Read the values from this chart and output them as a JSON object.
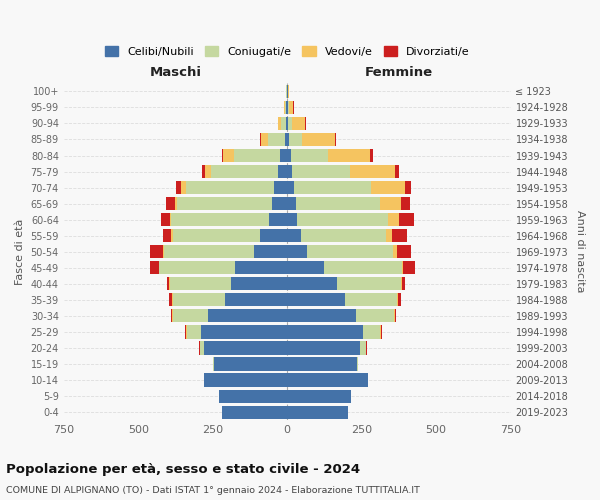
{
  "age_groups": [
    "0-4",
    "5-9",
    "10-14",
    "15-19",
    "20-24",
    "25-29",
    "30-34",
    "35-39",
    "40-44",
    "45-49",
    "50-54",
    "55-59",
    "60-64",
    "65-69",
    "70-74",
    "75-79",
    "80-84",
    "85-89",
    "90-94",
    "95-99",
    "100+"
  ],
  "birth_years": [
    "2019-2023",
    "2014-2018",
    "2009-2013",
    "2004-2008",
    "1999-2003",
    "1994-1998",
    "1989-1993",
    "1984-1988",
    "1979-1983",
    "1974-1978",
    "1969-1973",
    "1964-1968",
    "1959-1963",
    "1954-1958",
    "1949-1953",
    "1944-1948",
    "1939-1943",
    "1934-1938",
    "1929-1933",
    "1924-1928",
    "≤ 1923"
  ],
  "maschi": {
    "celibi": [
      220,
      230,
      280,
      245,
      280,
      290,
      265,
      210,
      190,
      175,
      110,
      90,
      60,
      50,
      45,
      30,
      25,
      8,
      5,
      3,
      2
    ],
    "coniugati": [
      0,
      0,
      0,
      3,
      12,
      48,
      120,
      175,
      205,
      255,
      305,
      295,
      330,
      320,
      295,
      225,
      155,
      55,
      15,
      5,
      2
    ],
    "vedovi": [
      0,
      0,
      0,
      0,
      0,
      1,
      1,
      1,
      2,
      2,
      3,
      4,
      5,
      8,
      15,
      20,
      35,
      25,
      10,
      3,
      1
    ],
    "divorziati": [
      0,
      0,
      0,
      0,
      5,
      3,
      5,
      12,
      8,
      28,
      42,
      28,
      28,
      28,
      18,
      10,
      5,
      3,
      1,
      0,
      0
    ]
  },
  "femmine": {
    "nubili": [
      205,
      215,
      270,
      235,
      245,
      255,
      230,
      195,
      168,
      125,
      65,
      45,
      32,
      28,
      22,
      15,
      12,
      6,
      4,
      2,
      2
    ],
    "coniugate": [
      0,
      0,
      0,
      3,
      18,
      58,
      130,
      175,
      215,
      260,
      290,
      288,
      308,
      285,
      258,
      195,
      125,
      45,
      12,
      4,
      1
    ],
    "vedove": [
      0,
      0,
      0,
      0,
      1,
      1,
      1,
      2,
      3,
      5,
      12,
      20,
      35,
      68,
      115,
      152,
      142,
      110,
      45,
      15,
      3
    ],
    "divorziate": [
      0,
      0,
      0,
      0,
      3,
      3,
      5,
      10,
      8,
      38,
      48,
      48,
      52,
      32,
      22,
      15,
      8,
      4,
      1,
      1,
      0
    ]
  },
  "colors": {
    "celibi": "#4472a8",
    "coniugati": "#c5d8a0",
    "vedovi": "#f5c460",
    "divorziati": "#cc1f1f"
  },
  "title": "Popolazione per età, sesso e stato civile - 2024",
  "subtitle": "COMUNE DI ALPIGNANO (TO) - Dati ISTAT 1° gennaio 2024 - Elaborazione TUTTITALIA.IT",
  "xlim": 750,
  "xlabel_maschi": "Maschi",
  "xlabel_femmine": "Femmine",
  "ylabel_left": "Fasce di età",
  "ylabel_right": "Anni di nascita",
  "legend_labels": [
    "Celibi/Nubili",
    "Coniugati/e",
    "Vedovi/e",
    "Divorziati/e"
  ],
  "bg_color": "#f8f8f8"
}
